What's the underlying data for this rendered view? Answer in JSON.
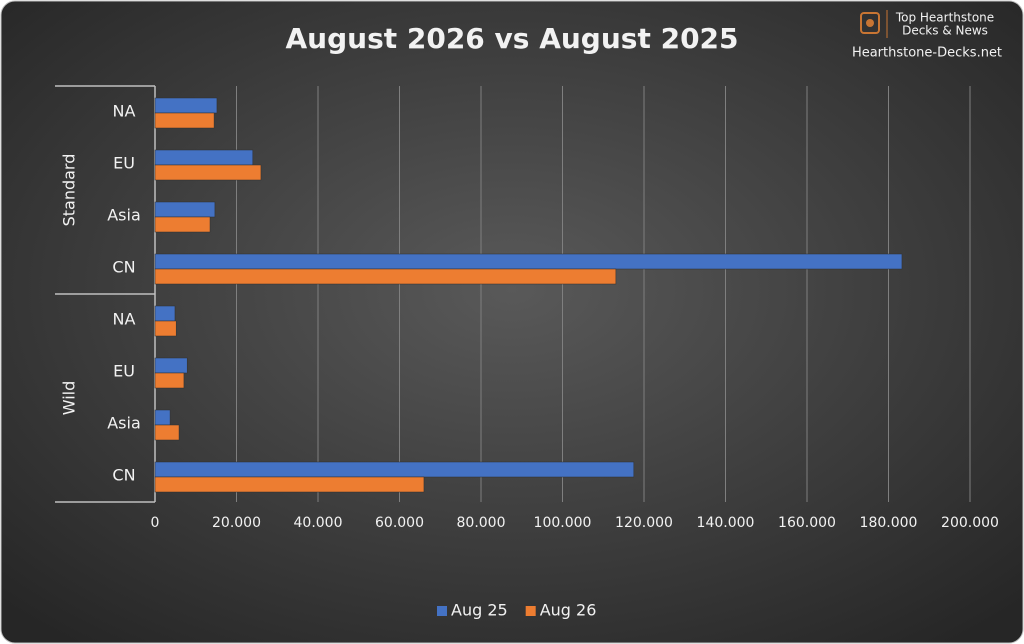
{
  "chart_data": {
    "type": "bar",
    "orientation": "horizontal",
    "title": "August 2026 vs August 2025",
    "groups": [
      {
        "label": "Standard",
        "categories": [
          "NA",
          "EU",
          "Asia",
          "CN"
        ]
      },
      {
        "label": "Wild",
        "categories": [
          "NA",
          "EU",
          "Asia",
          "CN"
        ]
      }
    ],
    "series": [
      {
        "name": "Aug 25",
        "color": "#4472c4",
        "values": [
          15200,
          24000,
          14700,
          183300,
          4900,
          7900,
          3700,
          117500
        ]
      },
      {
        "name": "Aug 26",
        "color": "#ed7d31",
        "values": [
          14500,
          26000,
          13500,
          113100,
          5200,
          7100,
          5900,
          66000
        ]
      }
    ],
    "xlim": [
      0,
      200000
    ],
    "xticks": [
      0,
      {
        "value": 20000,
        "label": "20.000"
      },
      {
        "value": 40000,
        "label": "40.000"
      },
      {
        "value": 60000,
        "label": "60.000"
      },
      {
        "value": 80000,
        "label": "80.000"
      },
      {
        "value": 100000,
        "label": "100.000"
      },
      {
        "value": 120000,
        "label": "120.000"
      },
      {
        "value": 140000,
        "label": "140.000"
      },
      {
        "value": 160000,
        "label": "160.000"
      },
      {
        "value": 180000,
        "label": "180.000"
      },
      {
        "value": 200000,
        "label": "200.000"
      }
    ],
    "grid": true,
    "legend": "bottom",
    "watermark": {
      "line1": "Top Hearthstone",
      "line2": "Decks & News",
      "site": "Hearthstone-Decks.net"
    }
  }
}
